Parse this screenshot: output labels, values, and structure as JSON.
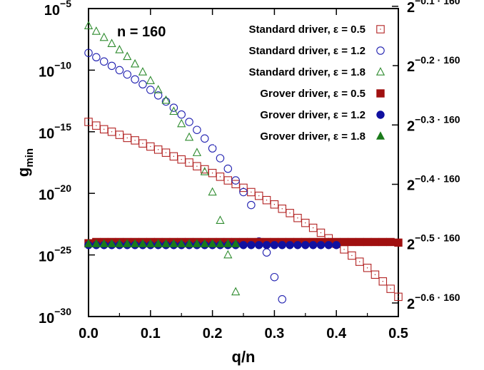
{
  "chart_data": {
    "type": "scatter",
    "xlabel": "q/n",
    "ylabel": "g",
    "ylabel_sub": "min",
    "annotation": "n = 160",
    "xlim": [
      0,
      0.5
    ],
    "ylim_log10": [
      -30,
      -5
    ],
    "y_scale": "log",
    "x_ticks": [
      0,
      0.1,
      0.2,
      0.3,
      0.4,
      0.5
    ],
    "x_tick_labels": [
      "0.0",
      "0.1",
      "0.2",
      "0.3",
      "0.4",
      "0.5"
    ],
    "y_ticks_log10": [
      -5,
      -10,
      -15,
      -20,
      -25,
      -30
    ],
    "y_tick_labels": [
      {
        "base": "10",
        "exp": "−5"
      },
      {
        "base": "10",
        "exp": "−10"
      },
      {
        "base": "10",
        "exp": "−15"
      },
      {
        "base": "10",
        "exp": "−20"
      },
      {
        "base": "10",
        "exp": "−25"
      },
      {
        "base": "10",
        "exp": "−30"
      }
    ],
    "y2_tick_labels": [
      {
        "base": "2",
        "exp": "−0.1 · 160",
        "log10": -4.8165
      },
      {
        "base": "2",
        "exp": "−0.2 · 160",
        "log10": -9.633
      },
      {
        "base": "2",
        "exp": "−0.3 · 160",
        "log10": -14.4494
      },
      {
        "base": "2",
        "exp": "−0.4 · 160",
        "log10": -19.2659
      },
      {
        "base": "2",
        "exp": "−0.5 · 160",
        "log10": -24.0824
      },
      {
        "base": "2",
        "exp": "−0.6 · 160",
        "log10": -28.8989
      }
    ],
    "grid": false,
    "legend_position": "top-right",
    "series": [
      {
        "name": "Standard driver, ε = 0.5",
        "marker": "open-square",
        "color": "#b22222",
        "x": [
          0.0,
          0.0125,
          0.025,
          0.0375,
          0.05,
          0.0625,
          0.075,
          0.0875,
          0.1,
          0.1125,
          0.125,
          0.1375,
          0.15,
          0.1625,
          0.175,
          0.1875,
          0.2,
          0.2125,
          0.225,
          0.2375,
          0.25,
          0.2625,
          0.275,
          0.2875,
          0.3,
          0.3125,
          0.325,
          0.3375,
          0.35,
          0.3625,
          0.375,
          0.3875,
          0.4,
          0.4125,
          0.425,
          0.4375,
          0.45,
          0.4625,
          0.475,
          0.4875,
          0.5
        ],
        "y_log10": [
          -14.2,
          -14.5,
          -14.8,
          -15.0,
          -15.25,
          -15.5,
          -15.7,
          -15.95,
          -16.2,
          -16.45,
          -16.7,
          -17.0,
          -17.25,
          -17.5,
          -17.8,
          -18.05,
          -18.35,
          -18.65,
          -18.95,
          -19.25,
          -19.55,
          -19.9,
          -20.2,
          -20.55,
          -20.9,
          -21.25,
          -21.6,
          -22.0,
          -22.4,
          -22.8,
          -23.2,
          -23.65,
          -24.1,
          -24.55,
          -25.05,
          -25.55,
          -26.05,
          -26.6,
          -27.15,
          -27.75,
          -28.4
        ]
      },
      {
        "name": "Standard driver, ε = 1.2",
        "marker": "open-circle",
        "color": "#2020b0",
        "x": [
          0.0,
          0.0125,
          0.025,
          0.0375,
          0.05,
          0.0625,
          0.075,
          0.0875,
          0.1,
          0.1125,
          0.125,
          0.1375,
          0.15,
          0.1625,
          0.175,
          0.1875,
          0.2,
          0.2125,
          0.225,
          0.2375,
          0.25,
          0.2625,
          0.275,
          0.2875,
          0.3,
          0.3125
        ],
        "y_log10": [
          -8.6,
          -8.95,
          -9.3,
          -9.65,
          -10.0,
          -10.35,
          -10.75,
          -11.15,
          -11.6,
          -12.05,
          -12.55,
          -13.05,
          -13.6,
          -14.2,
          -14.85,
          -15.55,
          -16.35,
          -17.15,
          -18.0,
          -18.95,
          -19.9,
          -20.95,
          -23.9,
          -24.8,
          -26.8,
          -28.6
        ]
      },
      {
        "name": "Standard driver, ε = 1.8",
        "marker": "open-triangle",
        "color": "#2e8b2e",
        "x": [
          0.0,
          0.0125,
          0.025,
          0.0375,
          0.05,
          0.0625,
          0.075,
          0.0875,
          0.1,
          0.1125,
          0.125,
          0.1375,
          0.15,
          0.1625,
          0.175,
          0.1875,
          0.2,
          0.2125,
          0.225,
          0.2375
        ],
        "y_log10": [
          -6.4,
          -6.85,
          -7.35,
          -7.85,
          -8.35,
          -8.9,
          -9.5,
          -10.15,
          -10.85,
          -11.6,
          -12.45,
          -13.35,
          -14.35,
          -15.45,
          -16.7,
          -18.25,
          -19.9,
          -22.2,
          -25.0,
          -28.0
        ]
      },
      {
        "name": "Grover driver, ε = 0.5",
        "marker": "filled-square",
        "color": "#a01010",
        "x": [
          0.0,
          0.0125,
          0.025,
          0.0375,
          0.05,
          0.0625,
          0.075,
          0.0875,
          0.1,
          0.1125,
          0.125,
          0.1375,
          0.15,
          0.1625,
          0.175,
          0.1875,
          0.2,
          0.2125,
          0.225,
          0.2375,
          0.25,
          0.2625,
          0.275,
          0.2875,
          0.3,
          0.3125,
          0.325,
          0.3375,
          0.35,
          0.3625,
          0.375,
          0.3875,
          0.4,
          0.4125,
          0.425,
          0.4375,
          0.45,
          0.4625,
          0.475,
          0.4875,
          0.5
        ],
        "y_log10": [
          -24.05,
          -23.95,
          -23.95,
          -23.95,
          -23.95,
          -23.95,
          -23.95,
          -23.95,
          -23.95,
          -23.95,
          -23.95,
          -23.95,
          -23.95,
          -23.95,
          -23.95,
          -23.95,
          -23.95,
          -23.95,
          -23.95,
          -23.95,
          -23.95,
          -23.95,
          -23.95,
          -23.95,
          -23.95,
          -23.95,
          -23.95,
          -23.95,
          -23.95,
          -23.95,
          -23.95,
          -23.95,
          -23.95,
          -23.95,
          -23.95,
          -23.95,
          -23.95,
          -23.95,
          -23.95,
          -23.95,
          -24.0
        ]
      },
      {
        "name": "Grover driver, ε = 1.2",
        "marker": "filled-circle",
        "color": "#1010a0",
        "x": [
          0.0,
          0.0125,
          0.025,
          0.0375,
          0.05,
          0.0625,
          0.075,
          0.0875,
          0.1,
          0.1125,
          0.125,
          0.1375,
          0.15,
          0.1625,
          0.175,
          0.1875,
          0.2,
          0.2125,
          0.225,
          0.2375,
          0.25,
          0.2625,
          0.275,
          0.2875,
          0.3,
          0.3125,
          0.325,
          0.3375,
          0.35,
          0.3625,
          0.375,
          0.3875,
          0.4
        ],
        "y_log10": [
          -24.2,
          -24.2,
          -24.2,
          -24.2,
          -24.2,
          -24.2,
          -24.2,
          -24.2,
          -24.2,
          -24.2,
          -24.2,
          -24.2,
          -24.2,
          -24.2,
          -24.2,
          -24.2,
          -24.2,
          -24.2,
          -24.2,
          -24.2,
          -24.2,
          -24.2,
          -24.2,
          -24.2,
          -24.2,
          -24.2,
          -24.2,
          -24.2,
          -24.2,
          -24.2,
          -24.2,
          -24.2,
          -24.2
        ]
      },
      {
        "name": "Grover driver, ε = 1.8",
        "marker": "filled-triangle",
        "color": "#1a7a1a",
        "x": [
          0.0,
          0.0125,
          0.025,
          0.0375,
          0.05,
          0.0625,
          0.075,
          0.0875,
          0.1,
          0.1125,
          0.125,
          0.1375,
          0.15,
          0.1625,
          0.175,
          0.1875,
          0.2,
          0.2125,
          0.225,
          0.2375
        ],
        "y_log10": [
          -24.1,
          -24.1,
          -24.1,
          -24.1,
          -24.1,
          -24.1,
          -24.1,
          -24.1,
          -24.1,
          -24.1,
          -24.1,
          -24.1,
          -24.1,
          -24.1,
          -24.1,
          -24.1,
          -24.1,
          -24.1,
          -24.1,
          -24.1
        ]
      }
    ]
  }
}
